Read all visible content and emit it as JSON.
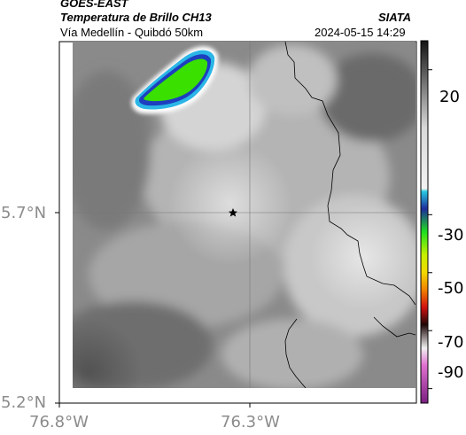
{
  "header": {
    "satellite": "GOES-EAST",
    "product": "Temperatura de Brillo CH13",
    "agency": "SIATA",
    "route": "Vía Medellín - Quibdó 50km",
    "datetime": "2024-05-15 14:29"
  },
  "map": {
    "lat_labels": [
      "5.7°N",
      "5.2°N"
    ],
    "lon_labels": [
      "76.8°W",
      "76.3°W"
    ],
    "grid": true,
    "marker": "star-icon",
    "colors": {
      "cloud_cold_core": "#39e000",
      "cloud_edge": "#1d3fbf",
      "cloud_rim": "#2bb6e6",
      "border_line": "#000000"
    }
  },
  "colorbar": {
    "tick_labels": [
      "20",
      "-30",
      "-50",
      "-70",
      "-90"
    ],
    "ticks_celsius": [
      20,
      -30,
      -50,
      -70,
      -90
    ],
    "range_celsius": [
      30,
      -95
    ],
    "stops": [
      {
        "c": 30,
        "color": "#141414"
      },
      {
        "c": 0,
        "color": "#d8d8d8"
      },
      {
        "c": -21,
        "color": "#f2f2f2"
      },
      {
        "c": -22,
        "color": "#28c8e0"
      },
      {
        "c": -28,
        "color": "#1e2c9c"
      },
      {
        "c": -36,
        "color": "#1fe01f"
      },
      {
        "c": -44,
        "color": "#c8f000"
      },
      {
        "c": -50,
        "color": "#f4d800"
      },
      {
        "c": -56,
        "color": "#f08000"
      },
      {
        "c": -62,
        "color": "#d01010"
      },
      {
        "c": -68,
        "color": "#200808"
      },
      {
        "c": -76,
        "color": "#f0f0f0"
      },
      {
        "c": -82,
        "color": "#e070d0"
      },
      {
        "c": -95,
        "color": "#7a1f80"
      }
    ]
  }
}
